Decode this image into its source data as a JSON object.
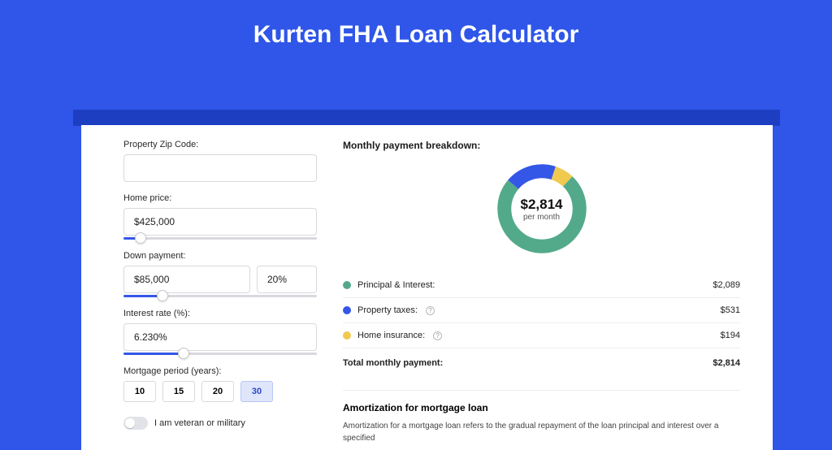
{
  "page": {
    "title": "Kurten FHA Loan Calculator",
    "background_color": "#2f56e8",
    "shadow_color": "#1e3ec2",
    "card_bg": "#ffffff"
  },
  "form": {
    "zip": {
      "label": "Property Zip Code:",
      "value": ""
    },
    "homePrice": {
      "label": "Home price:",
      "value": "$425,000",
      "slider_fill_pct": 9
    },
    "downPayment": {
      "label": "Down payment:",
      "value": "$85,000",
      "pct": "20%",
      "slider_fill_pct": 20
    },
    "rate": {
      "label": "Interest rate (%):",
      "value": "6.230%",
      "slider_fill_pct": 31
    },
    "period": {
      "label": "Mortgage period (years):",
      "options": [
        "10",
        "15",
        "20",
        "30"
      ],
      "selected": "30"
    },
    "veteran": {
      "label": "I am veteran or military",
      "checked": false
    }
  },
  "breakdown": {
    "title": "Monthly payment breakdown:",
    "donut": {
      "amount": "$2,814",
      "sub": "per month",
      "ring_width": 17,
      "background": "#ffffff",
      "segments": [
        {
          "key": "pi",
          "color": "#53aa8a",
          "pct": 74
        },
        {
          "key": "tax",
          "color": "#3457e8",
          "pct": 19
        },
        {
          "key": "ins",
          "color": "#f0c94f",
          "pct": 7
        }
      ]
    },
    "rows": [
      {
        "dot": "#53aa8a",
        "label": "Principal & Interest:",
        "info": false,
        "value": "$2,089"
      },
      {
        "dot": "#3457e8",
        "label": "Property taxes:",
        "info": true,
        "value": "$531"
      },
      {
        "dot": "#f0c94f",
        "label": "Home insurance:",
        "info": true,
        "value": "$194"
      }
    ],
    "total": {
      "label": "Total monthly payment:",
      "value": "$2,814"
    }
  },
  "amortization": {
    "title": "Amortization for mortgage loan",
    "text": "Amortization for a mortgage loan refers to the gradual repayment of the loan principal and interest over a specified"
  }
}
